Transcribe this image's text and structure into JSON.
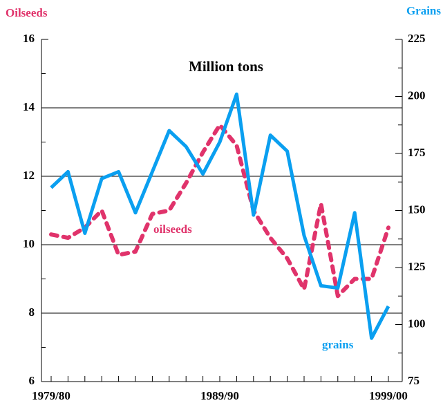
{
  "chart_data": {
    "type": "line",
    "title": "Million tons",
    "y_label": "Oilseeds",
    "y2_label": "Grains",
    "categories": [
      "1979/80",
      null,
      null,
      null,
      null,
      null,
      null,
      null,
      null,
      null,
      "1989/90",
      null,
      null,
      null,
      null,
      null,
      null,
      null,
      null,
      null,
      "1999/00"
    ],
    "series": [
      {
        "name": "oilseeds",
        "color": "#e0336b",
        "dashed": true,
        "axis": "y",
        "values": [
          10.3,
          10.2,
          10.5,
          11.0,
          9.7,
          9.8,
          10.9,
          11.0,
          11.8,
          12.7,
          13.5,
          12.9,
          11.0,
          10.2,
          9.6,
          8.7,
          11.2,
          8.5,
          9.0,
          9.0,
          10.5
        ]
      },
      {
        "name": "grains",
        "color": "#0a9ff0",
        "dashed": false,
        "axis": "y2",
        "values": [
          160,
          167,
          140,
          164,
          167,
          149,
          167,
          185,
          178,
          166,
          180,
          201,
          148,
          183,
          176,
          139,
          117,
          116,
          149,
          94,
          108
        ]
      }
    ],
    "ylim": [
      6,
      16
    ],
    "yticks": [
      6,
      8,
      10,
      12,
      14,
      16
    ],
    "y2lim": [
      75,
      225
    ],
    "y2ticks": [
      75,
      100,
      125,
      150,
      175,
      200,
      225
    ],
    "grid": true
  }
}
